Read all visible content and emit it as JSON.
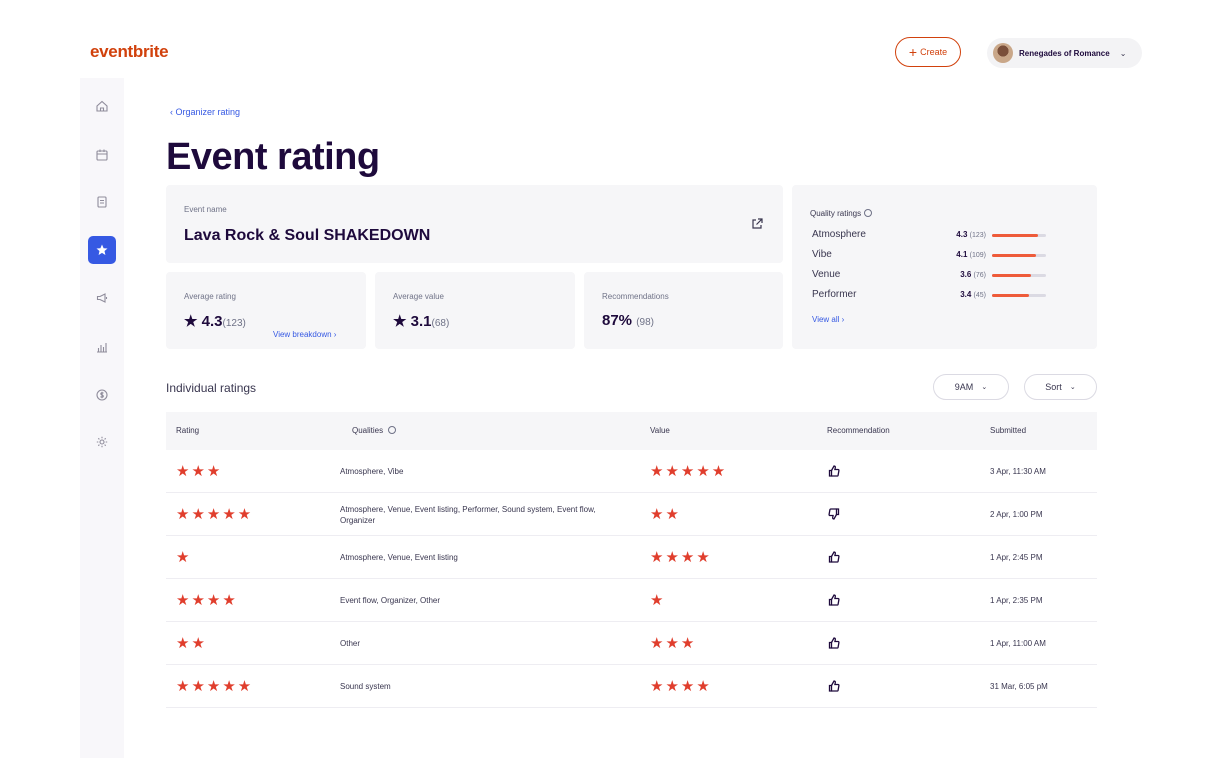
{
  "header": {
    "logo": "eventbrite",
    "create_label": "Create",
    "account_name": "Renegades of Romance"
  },
  "sidebar": {
    "items": [
      {
        "icon": "home-icon"
      },
      {
        "icon": "calendar-icon"
      },
      {
        "icon": "orders-icon"
      },
      {
        "icon": "star-icon",
        "active": true
      },
      {
        "icon": "megaphone-icon"
      },
      {
        "icon": "bar-chart-icon"
      },
      {
        "icon": "dollar-icon"
      },
      {
        "icon": "gear-icon"
      }
    ]
  },
  "breadcrumb": "Organizer rating",
  "page_title": "Event rating",
  "event": {
    "label": "Event name",
    "name": "Lava Rock & Soul SHAKEDOWN"
  },
  "stats": {
    "average_rating": {
      "label": "Average rating",
      "value": "4.3",
      "count": "(123)",
      "link": "View breakdown ›"
    },
    "average_value": {
      "label": "Average value",
      "value": "3.1",
      "count": "(68)"
    },
    "recommendations": {
      "label": "Recommendations",
      "value": "87%",
      "count": "(98)"
    }
  },
  "quality": {
    "title": "Quality ratings",
    "items": [
      {
        "name": "Atmosphere",
        "score": "4.3",
        "count": "(123)",
        "fill": 0.86
      },
      {
        "name": "Vibe",
        "score": "4.1",
        "count": "(109)",
        "fill": 0.82
      },
      {
        "name": "Venue",
        "score": "3.6",
        "count": "(76)",
        "fill": 0.72
      },
      {
        "name": "Performer",
        "score": "3.4",
        "count": "(45)",
        "fill": 0.68
      }
    ],
    "view_all": "View all ›"
  },
  "ratings_section": {
    "title": "Individual ratings",
    "filter_label": "9AM",
    "sort_label": "Sort"
  },
  "table": {
    "headers": [
      "Rating",
      "Qualities",
      "Value",
      "Recommendation",
      "Submitted"
    ],
    "rows": [
      {
        "rating": 3,
        "qualities": "Atmosphere, Vibe",
        "value": 5,
        "recommend": "up",
        "submitted": "3 Apr, 11:30 AM"
      },
      {
        "rating": 5,
        "qualities": "Atmosphere, Venue, Event listing, Performer, Sound system, Event flow, Organizer",
        "value": 2,
        "recommend": "down",
        "submitted": "2 Apr, 1:00 PM"
      },
      {
        "rating": 1,
        "qualities": "Atmosphere, Venue, Event listing",
        "value": 4,
        "recommend": "up",
        "submitted": "1 Apr, 2:45 PM"
      },
      {
        "rating": 4,
        "qualities": "Event flow, Organizer, Other",
        "value": 1,
        "recommend": "up",
        "submitted": "1 Apr, 2:35 PM"
      },
      {
        "rating": 2,
        "qualities": "Other",
        "value": 3,
        "recommend": "up",
        "submitted": "1 Apr, 11:00 AM"
      },
      {
        "rating": 5,
        "qualities": "Sound system",
        "value": 4,
        "recommend": "up",
        "submitted": "31 Mar, 6:05 pM"
      }
    ]
  },
  "colors": {
    "brand": "#d1410c",
    "accent": "#3659e3",
    "star": "#e03e2d",
    "bar": "#ee5b3a",
    "title": "#1e0a3c"
  }
}
